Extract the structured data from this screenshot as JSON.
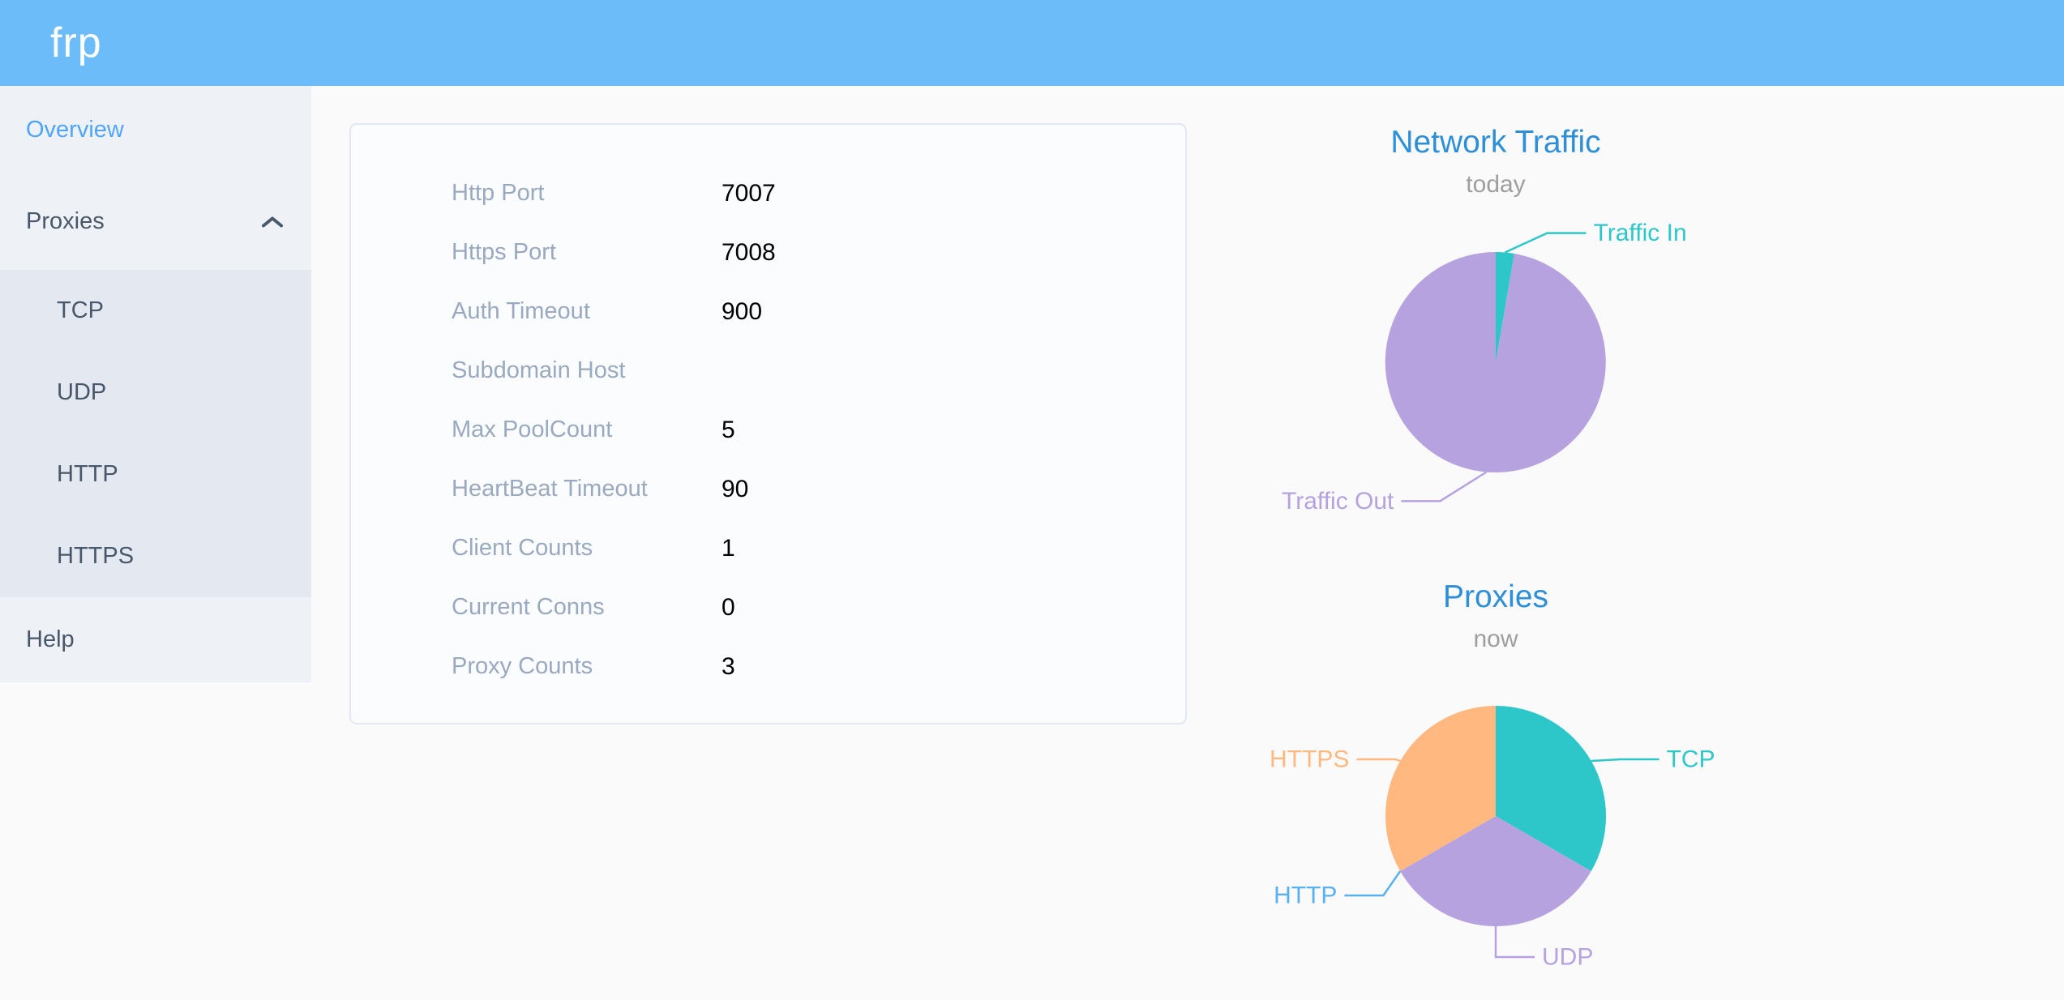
{
  "header": {
    "logo": "frp"
  },
  "sidebar": {
    "items": [
      {
        "label": "Overview",
        "active": true
      },
      {
        "label": "Proxies",
        "expanded": true,
        "children": [
          "TCP",
          "UDP",
          "HTTP",
          "HTTPS"
        ]
      },
      {
        "label": "Help"
      }
    ]
  },
  "server_info": {
    "rows": [
      {
        "label": "Http Port",
        "value": "7007"
      },
      {
        "label": "Https Port",
        "value": "7008"
      },
      {
        "label": "Auth Timeout",
        "value": "900"
      },
      {
        "label": "Subdomain Host",
        "value": ""
      },
      {
        "label": "Max PoolCount",
        "value": "5"
      },
      {
        "label": "HeartBeat Timeout",
        "value": "90"
      },
      {
        "label": "Client Counts",
        "value": "1"
      },
      {
        "label": "Current Conns",
        "value": "0"
      },
      {
        "label": "Proxy Counts",
        "value": "3"
      }
    ]
  },
  "chart_data": [
    {
      "type": "pie",
      "title": "Network Traffic",
      "subtitle": "today",
      "legend_position": "none",
      "label_style": "outside-leader-lines",
      "start_angle_deg": 0,
      "series": [
        {
          "name": "Traffic In",
          "value": 2.7,
          "color": "#2ec7c9"
        },
        {
          "name": "Traffic Out",
          "value": 97.3,
          "color": "#b6a2de"
        }
      ],
      "value_unit": "estimated percent share of today's traffic"
    },
    {
      "type": "pie",
      "title": "Proxies",
      "subtitle": "now",
      "legend_position": "none",
      "label_style": "outside-leader-lines",
      "start_angle_deg": 0,
      "series": [
        {
          "name": "TCP",
          "value": 1,
          "color": "#2ec7c9"
        },
        {
          "name": "UDP",
          "value": 1,
          "color": "#b6a2de"
        },
        {
          "name": "HTTP",
          "value": 0,
          "color": "#5ab1ef"
        },
        {
          "name": "HTTPS",
          "value": 1,
          "color": "#ffb980"
        }
      ],
      "value_unit": "proxy count"
    }
  ],
  "colors": {
    "header_bg": "#6cbcfa",
    "sidebar_bg": "#eef1f6",
    "submenu_bg": "#e4e8f1",
    "menu_text": "#48576a",
    "menu_active": "#4fa5f7",
    "card_border": "#e3e7f5",
    "config_label": "#99a9bf",
    "chart_title": "#2d8fd8",
    "chart_subtitle": "#9e9e9e"
  }
}
